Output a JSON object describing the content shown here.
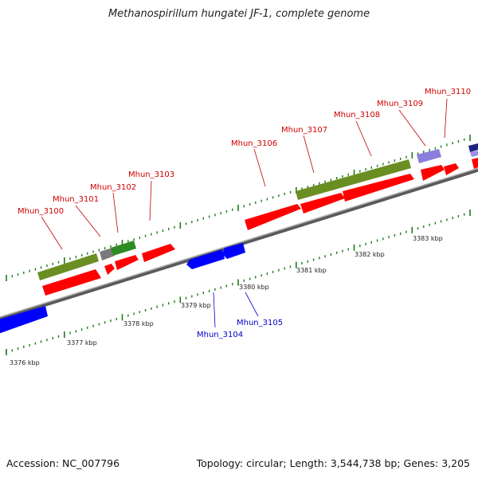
{
  "title": "Methanospirillum hungatei JF-1, complete genome",
  "footer": {
    "accession": "Accession: NC_007796",
    "summary": "Topology: circular; Length: 3,544,738 bp; Genes: 3,205"
  },
  "colors": {
    "backbone": "#888888",
    "forward_gene": "#ff0000",
    "reverse_gene": "#0000ff",
    "olive_feature": "#6b8e23",
    "green_feature": "#228b22",
    "lavender_feature": "#8a7fdc",
    "tick_mark": "#1e7a1e"
  },
  "kbp_ticks": [
    "3376 kbp",
    "3377 kbp",
    "3378 kbp",
    "3379 kbp",
    "3380 kbp",
    "3381 kbp",
    "3382 kbp",
    "3383 kbp"
  ],
  "gene_labels": [
    {
      "text": "Mhun_3100",
      "color": "#d00000"
    },
    {
      "text": "Mhun_3101",
      "color": "#d00000"
    },
    {
      "text": "Mhun_3102",
      "color": "#d00000"
    },
    {
      "text": "Mhun_3103",
      "color": "#d00000"
    },
    {
      "text": "Mhun_3104",
      "color": "#0000cc"
    },
    {
      "text": "Mhun_3105",
      "color": "#0000cc"
    },
    {
      "text": "Mhun_3106",
      "color": "#d00000"
    },
    {
      "text": "Mhun_3107",
      "color": "#d00000"
    },
    {
      "text": "Mhun_3108",
      "color": "#d00000"
    },
    {
      "text": "Mhun_3109",
      "color": "#d00000"
    },
    {
      "text": "Mhun_3110",
      "color": "#d00000"
    }
  ]
}
